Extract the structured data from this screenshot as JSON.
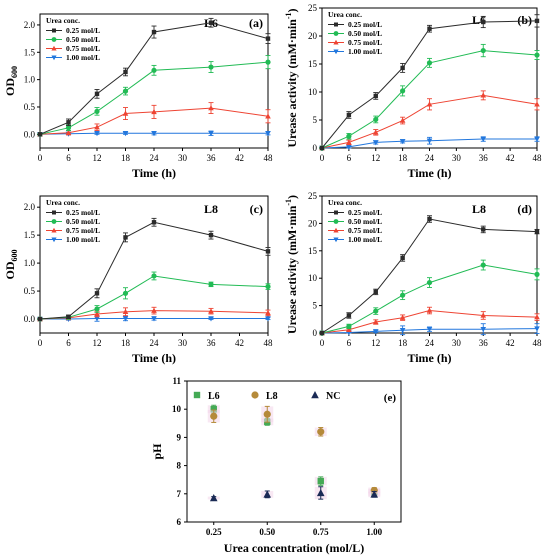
{
  "chart_data": [
    {
      "type": "line",
      "panel_label": "(a)",
      "strain": "L6",
      "legend_title": "Urea conc.",
      "xlabel": "Time (h)",
      "ylabel": "OD",
      "ylabel_sub": "600",
      "x": [
        0,
        6,
        12,
        18,
        24,
        36,
        48
      ],
      "xlim": [
        0,
        48
      ],
      "ylim": [
        -0.25,
        2.2
      ],
      "xticks": [
        0,
        6,
        12,
        18,
        24,
        30,
        36,
        42,
        48
      ],
      "yticks": [
        0.0,
        0.5,
        1.0,
        1.5,
        2.0
      ],
      "series": [
        {
          "name": "0.25 mol/L",
          "color": "#2b2b2b",
          "marker": "square",
          "values": [
            0,
            0.22,
            0.74,
            1.14,
            1.87,
            2.04,
            1.75
          ],
          "errors": [
            0,
            0.06,
            0.08,
            0.07,
            0.11,
            0.08,
            0.09
          ]
        },
        {
          "name": "0.50 mol/L",
          "color": "#22bb55",
          "marker": "circle",
          "values": [
            0,
            0.12,
            0.42,
            0.79,
            1.17,
            1.23,
            1.32
          ],
          "errors": [
            0,
            0.05,
            0.07,
            0.07,
            0.09,
            0.1,
            0.12
          ]
        },
        {
          "name": "0.75 mol/L",
          "color": "#ee4433",
          "marker": "triangle-up",
          "values": [
            0,
            0.03,
            0.13,
            0.38,
            0.41,
            0.48,
            0.33
          ],
          "errors": [
            0,
            0.04,
            0.06,
            0.11,
            0.12,
            0.1,
            0.12
          ]
        },
        {
          "name": "1.00 mol/L",
          "color": "#2277dd",
          "marker": "triangle-down",
          "values": [
            0,
            0.01,
            0.02,
            0.02,
            0.02,
            0.02,
            0.02
          ],
          "errors": [
            0,
            0.02,
            0.02,
            0.02,
            0.03,
            0.04,
            0.03
          ]
        }
      ]
    },
    {
      "type": "line",
      "panel_label": "(b)",
      "strain": "L6",
      "legend_title": "Urea conc.",
      "xlabel": "Time (h)",
      "ylabel": "Urease activity (mM·min",
      "ylabel_sup": "-1",
      "ylabel_end": ")",
      "x": [
        0,
        6,
        12,
        18,
        24,
        36,
        48
      ],
      "xlim": [
        0,
        48
      ],
      "ylim": [
        0,
        25
      ],
      "xticks": [
        0,
        6,
        12,
        18,
        24,
        30,
        36,
        42,
        48
      ],
      "yticks": [
        0,
        5,
        10,
        15,
        20,
        25
      ],
      "series": [
        {
          "name": "0.25 mol/L",
          "color": "#2b2b2b",
          "marker": "square",
          "values": [
            0,
            5.9,
            9.3,
            14.3,
            21.3,
            22.5,
            22.7
          ],
          "errors": [
            0,
            0.6,
            0.6,
            0.8,
            0.6,
            1.0,
            1.1
          ]
        },
        {
          "name": "0.50 mol/L",
          "color": "#22bb55",
          "marker": "circle",
          "values": [
            0,
            2.1,
            5.1,
            10.2,
            15.2,
            17.4,
            16.6
          ],
          "errors": [
            0,
            0.5,
            0.6,
            0.9,
            0.8,
            1.1,
            0.8
          ]
        },
        {
          "name": "0.75 mol/L",
          "color": "#ee4433",
          "marker": "triangle-up",
          "values": [
            0,
            1.0,
            2.8,
            4.9,
            7.8,
            9.4,
            7.8
          ],
          "errors": [
            0,
            0.4,
            0.5,
            0.6,
            1.0,
            0.8,
            1.0
          ]
        },
        {
          "name": "1.00 mol/L",
          "color": "#2277dd",
          "marker": "triangle-down",
          "values": [
            0,
            0.2,
            1.0,
            1.2,
            1.3,
            1.6,
            1.6
          ],
          "errors": [
            0,
            0.2,
            0.3,
            0.3,
            0.6,
            0.4,
            0.4
          ]
        }
      ]
    },
    {
      "type": "line",
      "panel_label": "(c)",
      "strain": "L8",
      "legend_title": "Urea conc.",
      "xlabel": "Time (h)",
      "ylabel": "OD",
      "ylabel_sub": "600",
      "x": [
        0,
        6,
        12,
        18,
        24,
        36,
        48
      ],
      "xlim": [
        0,
        48
      ],
      "ylim": [
        -0.25,
        2.2
      ],
      "xticks": [
        0,
        6,
        12,
        18,
        24,
        30,
        36,
        42,
        48
      ],
      "yticks": [
        0.0,
        0.5,
        1.0,
        1.5,
        2.0
      ],
      "series": [
        {
          "name": "0.25 mol/L",
          "color": "#2b2b2b",
          "marker": "square",
          "values": [
            0,
            0.04,
            0.46,
            1.46,
            1.73,
            1.5,
            1.21
          ],
          "errors": [
            0,
            0.03,
            0.08,
            0.08,
            0.07,
            0.07,
            0.07
          ]
        },
        {
          "name": "0.50 mol/L",
          "color": "#22bb55",
          "marker": "circle",
          "values": [
            0,
            0.03,
            0.18,
            0.46,
            0.77,
            0.62,
            0.58
          ],
          "errors": [
            0,
            0.03,
            0.06,
            0.1,
            0.07,
            0.04,
            0.05
          ]
        },
        {
          "name": "0.75 mol/L",
          "color": "#ee4433",
          "marker": "triangle-up",
          "values": [
            0,
            0.02,
            0.09,
            0.13,
            0.15,
            0.14,
            0.11
          ],
          "errors": [
            0,
            0.02,
            0.05,
            0.07,
            0.06,
            0.05,
            0.05
          ]
        },
        {
          "name": "1.00 mol/L",
          "color": "#2277dd",
          "marker": "triangle-down",
          "values": [
            0,
            0.0,
            0.01,
            0.01,
            0.01,
            0.01,
            0.01
          ],
          "errors": [
            0,
            0.02,
            0.05,
            0.04,
            0.03,
            0.02,
            0.02
          ]
        }
      ]
    },
    {
      "type": "line",
      "panel_label": "(d)",
      "strain": "L8",
      "legend_title": "Urea conc.",
      "xlabel": "Time (h)",
      "ylabel": "Urease activity (mM·min",
      "ylabel_sup": "-1",
      "ylabel_end": ")",
      "x": [
        0,
        6,
        12,
        18,
        24,
        36,
        48
      ],
      "xlim": [
        0,
        48
      ],
      "ylim": [
        0,
        25
      ],
      "xticks": [
        0,
        6,
        12,
        18,
        24,
        30,
        36,
        42,
        48
      ],
      "yticks": [
        0,
        5,
        10,
        15,
        20,
        25
      ],
      "series": [
        {
          "name": "0.25 mol/L",
          "color": "#2b2b2b",
          "marker": "square",
          "values": [
            0,
            3.2,
            7.5,
            13.7,
            20.8,
            18.9,
            18.5
          ],
          "errors": [
            0,
            0.5,
            0.5,
            0.6,
            0.6,
            0.6,
            0.4
          ]
        },
        {
          "name": "0.50 mol/L",
          "color": "#22bb55",
          "marker": "circle",
          "values": [
            0,
            1.2,
            4.0,
            6.9,
            9.2,
            12.4,
            10.7
          ],
          "errors": [
            0,
            0.4,
            0.6,
            0.8,
            0.9,
            0.9,
            1.0
          ]
        },
        {
          "name": "0.75 mol/L",
          "color": "#ee4433",
          "marker": "triangle-up",
          "values": [
            0,
            0.6,
            2.0,
            2.8,
            4.1,
            3.2,
            2.9
          ],
          "errors": [
            0,
            0.3,
            0.4,
            0.5,
            0.6,
            0.7,
            0.6
          ]
        },
        {
          "name": "1.00 mol/L",
          "color": "#2277dd",
          "marker": "triangle-down",
          "values": [
            0,
            0.1,
            0.3,
            0.5,
            0.7,
            0.7,
            0.8
          ],
          "errors": [
            0,
            0.1,
            0.2,
            0.8,
            0.4,
            1.0,
            0.9
          ]
        }
      ]
    },
    {
      "type": "scatter",
      "panel_label": "(e)",
      "xlabel": "Urea concentration (mol/L)",
      "ylabel": "pH",
      "categories": [
        "0.25",
        "0.50",
        "0.75",
        "1.00"
      ],
      "x": [
        0.25,
        0.5,
        0.75,
        1.0
      ],
      "xlim": [
        0.125,
        1.125
      ],
      "ylim": [
        6,
        11
      ],
      "xticks": [
        0.25,
        0.5,
        0.75,
        1.0
      ],
      "yticks": [
        6,
        7,
        8,
        9,
        10,
        11
      ],
      "series": [
        {
          "name": "L6",
          "color": "#44aa55",
          "marker": "square",
          "values": [
            10.0,
            9.55,
            7.45,
            7.05
          ],
          "errors": [
            0.14,
            0.12,
            0.15,
            0.12
          ]
        },
        {
          "name": "L8",
          "color": "#b58a3a",
          "marker": "circle",
          "values": [
            9.75,
            9.82,
            9.2,
            7.12
          ],
          "errors": [
            0.22,
            0.28,
            0.15,
            0.1
          ]
        },
        {
          "name": "NC",
          "color": "#1a2a55",
          "marker": "triangle-up",
          "values": [
            6.85,
            6.98,
            7.03,
            6.98
          ],
          "errors": [
            0.05,
            0.12,
            0.22,
            0.1
          ]
        }
      ]
    }
  ]
}
